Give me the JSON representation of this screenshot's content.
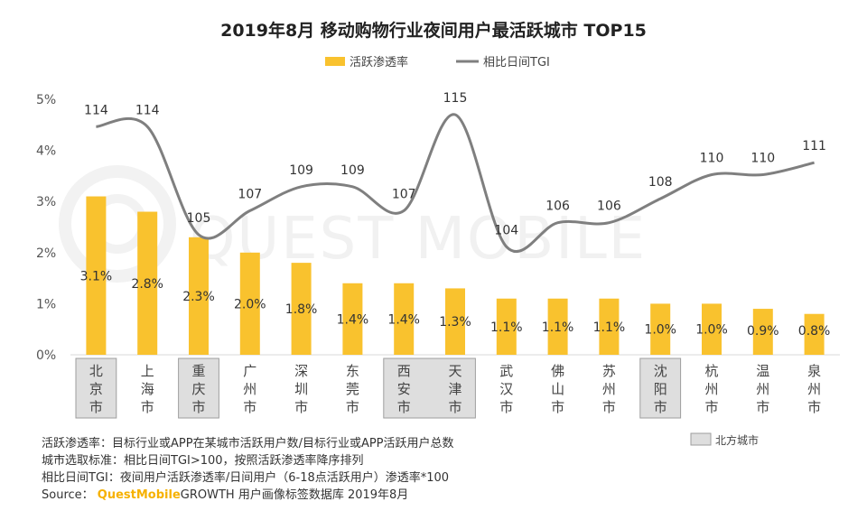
{
  "chart_data": {
    "type": "bar+line",
    "title": "2019年8月 移动购物行业夜间用户最活跃城市 TOP15",
    "categories": [
      "北京市",
      "上海市",
      "重庆市",
      "广州市",
      "深圳市",
      "东莞市",
      "西安市",
      "天津市",
      "武汉市",
      "佛山市",
      "苏州市",
      "沈阳市",
      "杭州市",
      "温州市",
      "泉州市"
    ],
    "highlighted_categories": [
      "北京市",
      "重庆市",
      "西安市",
      "天津市",
      "沈阳市"
    ],
    "series": [
      {
        "name": "活跃渗透率",
        "type": "bar",
        "color": "#f9c22e",
        "values": [
          3.1,
          2.8,
          2.3,
          2.0,
          1.8,
          1.4,
          1.4,
          1.3,
          1.1,
          1.1,
          1.1,
          1.0,
          1.0,
          0.9,
          0.8
        ],
        "labels": [
          "3.1%",
          "2.8%",
          "2.3%",
          "2.0%",
          "1.8%",
          "1.4%",
          "1.4%",
          "1.3%",
          "1.1%",
          "1.1%",
          "1.1%",
          "1.0%",
          "1.0%",
          "0.9%",
          "0.8%"
        ]
      },
      {
        "name": "相比日间TGI",
        "type": "line",
        "color": "#7f7f7f",
        "values": [
          114,
          114,
          105,
          107,
          109,
          109,
          107,
          115,
          104,
          106,
          106,
          108,
          110,
          110,
          111
        ]
      }
    ],
    "y_axis": {
      "min": 0,
      "max": 5,
      "ticks": [
        "0%",
        "1%",
        "2%",
        "3%",
        "4%",
        "5%"
      ]
    },
    "legend": {
      "position": "top-center",
      "items": [
        "活跃渗透率",
        "相比日间TGI"
      ]
    },
    "highlight_legend": "北方城市",
    "watermark": "QUEST MOBILE"
  },
  "notes": {
    "line1": "活跃渗透率：目标行业或APP在某城市活跃用户数/目标行业或APP活跃用户总数",
    "line2": "城市选取标准：相比日间TGI>100，按照活跃渗透率降序排列",
    "line3": "相比日间TGI：夜间用户活跃渗透率/日间用户（6-18点活跃用户）渗透率*100",
    "source_label": "Source：",
    "brand": "QuestMobile",
    "source_rest": "GROWTH 用户画像标签数据库 2019年8月"
  }
}
